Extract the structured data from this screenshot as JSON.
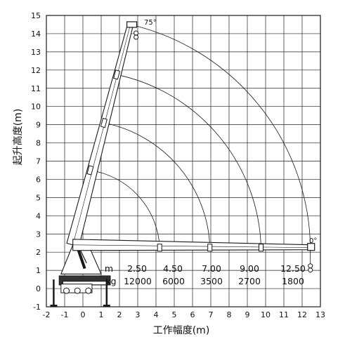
{
  "labels": {
    "y_title": "起升高度(m)",
    "x_title": "工作幅度(m)",
    "angle_top": "75°",
    "angle_bottom": "0°"
  },
  "axes": {
    "x_min": -2,
    "x_max": 13,
    "y_min": -1,
    "y_max": 15,
    "x_ticks": [
      "-2",
      "-1",
      "0",
      "1",
      "2",
      "3",
      "4",
      "5",
      "6",
      "7",
      "8",
      "9",
      "10",
      "11",
      "12",
      "13"
    ],
    "y_ticks": [
      "-1",
      "0",
      "1",
      "2",
      "3",
      "4",
      "5",
      "6",
      "7",
      "8",
      "9",
      "10",
      "11",
      "12",
      "13",
      "14",
      "15"
    ]
  },
  "load_table": {
    "row_m_label": "m",
    "row_kg_label": "kg",
    "radius_m": [
      "2.50",
      "4.50",
      "7.00",
      "9.00",
      "12.50"
    ],
    "load_kg": [
      "12000",
      "6000",
      "3500",
      "2700",
      "1800"
    ]
  },
  "boom": {
    "pivot": [
      -0.55,
      2.4
    ],
    "angle_deg": [
      75,
      0
    ],
    "sections_tip": [
      {
        "vertical": [
          0.4,
          6.5
        ],
        "horizontal": [
          4.2,
          2.25
        ]
      },
      {
        "vertical": [
          1.15,
          9.1
        ],
        "horizontal": [
          6.95,
          2.25
        ]
      },
      {
        "vertical": [
          1.85,
          11.75
        ],
        "horizontal": [
          9.75,
          2.25
        ]
      },
      {
        "vertical": [
          2.6,
          14.5
        ],
        "horizontal": [
          12.45,
          2.25
        ]
      }
    ]
  },
  "colors": {
    "line": "#1a1a1a",
    "background": "#ffffff"
  }
}
